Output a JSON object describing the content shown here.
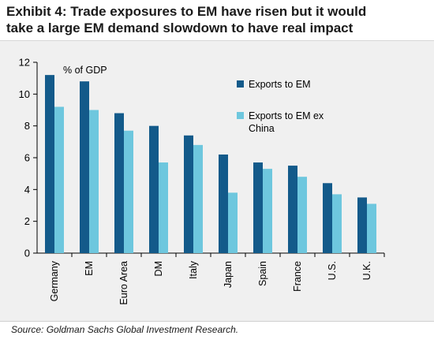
{
  "title_line1": "Exhibit 4: Trade exposures to EM have risen but it would",
  "title_line2": "take a large EM demand slowdown to have real impact",
  "source": "Source: Goldman Sachs Global Investment Research.",
  "chart_data": {
    "type": "bar",
    "unit_label": "% of GDP",
    "categories": [
      "Germany",
      "EM",
      "Euro Area",
      "DM",
      "Italy",
      "Japan",
      "Spain",
      "France",
      "U.S.",
      "U.K."
    ],
    "series": [
      {
        "name": "Exports to EM",
        "color": "#135a8a",
        "values": [
          11.2,
          10.8,
          8.8,
          8.0,
          7.4,
          6.2,
          5.7,
          5.5,
          4.4,
          3.5
        ]
      },
      {
        "name_lines": [
          "Exports to EM ex",
          "China"
        ],
        "color": "#6ec7de",
        "values": [
          9.2,
          9.0,
          7.7,
          5.7,
          6.8,
          3.8,
          5.3,
          4.8,
          3.7,
          3.1
        ]
      }
    ],
    "ylim": [
      0,
      12
    ],
    "yticks": [
      "0",
      "2",
      "4",
      "6",
      "8",
      "10",
      "12"
    ],
    "grid": false,
    "legend": "top-right"
  }
}
